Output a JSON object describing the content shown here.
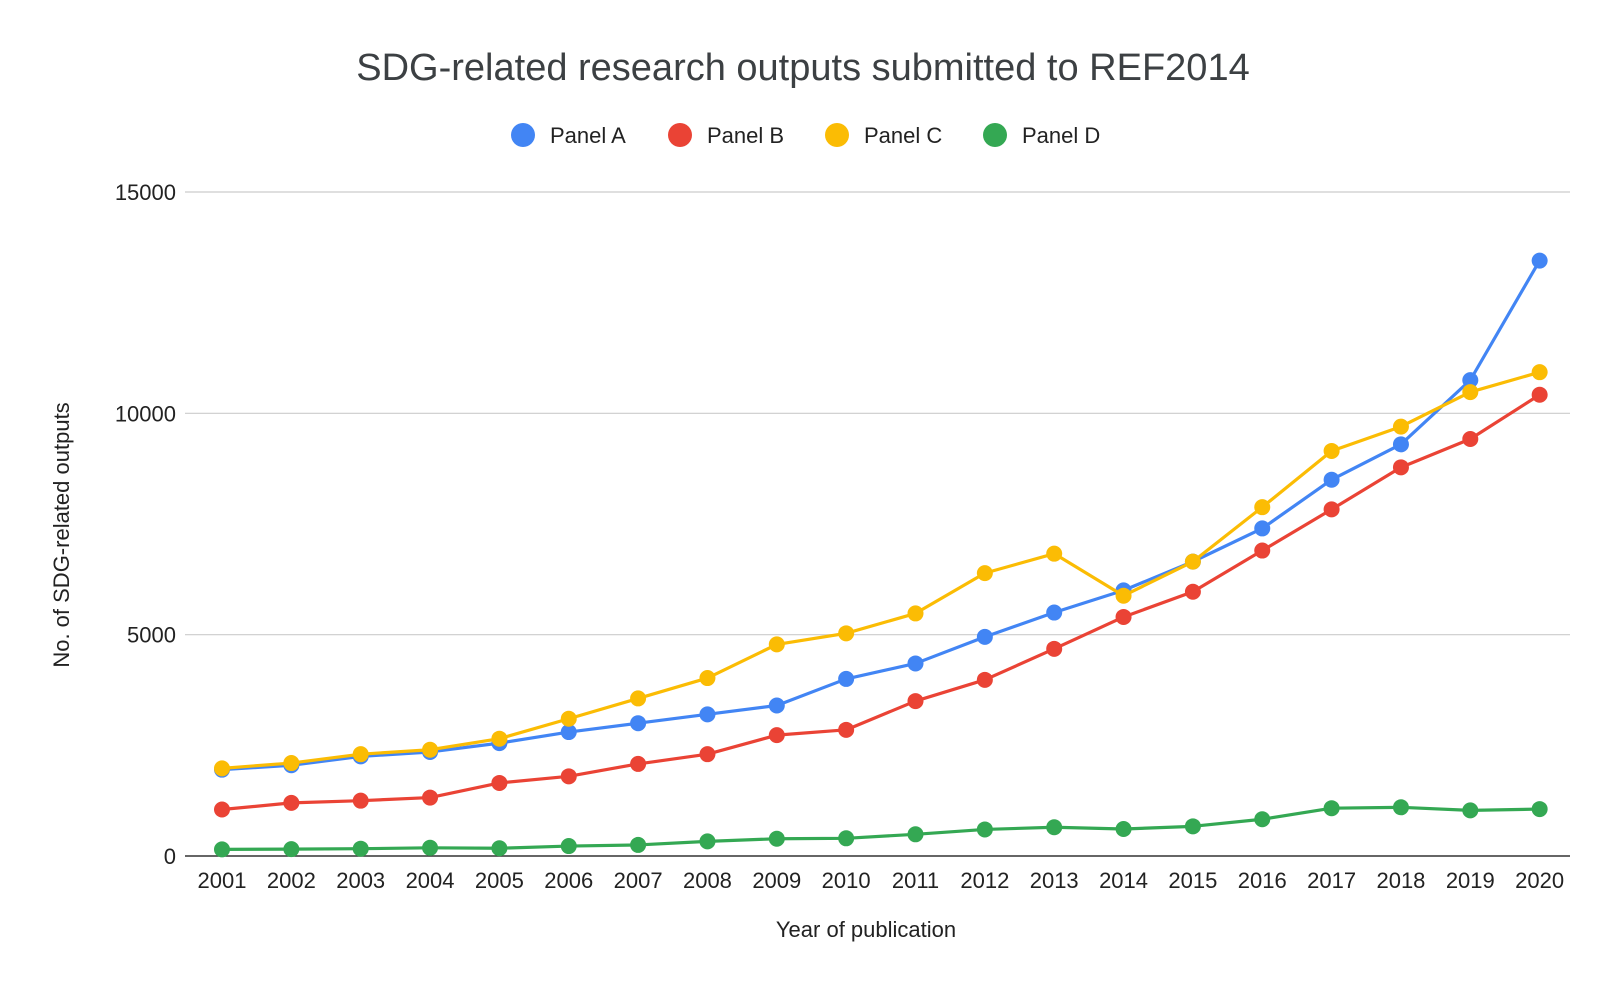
{
  "chart_data": {
    "type": "line",
    "title": "SDG-related research outputs submitted to REF2014",
    "xlabel": "Year of publication",
    "ylabel": "No. of SDG-related outputs",
    "ylim": [
      0,
      15000
    ],
    "yticks": [
      0,
      5000,
      10000,
      15000
    ],
    "grid": true,
    "legend_position": "top-center",
    "x": [
      "2001",
      "2002",
      "2003",
      "2004",
      "2005",
      "2006",
      "2007",
      "2008",
      "2009",
      "2010",
      "2011",
      "2012",
      "2013",
      "2014",
      "2015",
      "2016",
      "2017",
      "2018",
      "2019",
      "2020"
    ],
    "series": [
      {
        "name": "Panel A",
        "color": "#4285f4",
        "values": [
          1950,
          2050,
          2250,
          2350,
          2550,
          2800,
          3000,
          3200,
          3400,
          4000,
          4350,
          4950,
          5500,
          6000,
          6650,
          7400,
          8500,
          9300,
          10750,
          13450
        ]
      },
      {
        "name": "Panel B",
        "color": "#ea4335",
        "values": [
          1050,
          1200,
          1250,
          1320,
          1650,
          1800,
          2080,
          2300,
          2730,
          2850,
          3500,
          3980,
          4680,
          5400,
          5970,
          6900,
          7830,
          8780,
          9420,
          10420
        ]
      },
      {
        "name": "Panel C",
        "color": "#fbbc04",
        "values": [
          1980,
          2100,
          2300,
          2400,
          2650,
          3100,
          3560,
          4020,
          4780,
          5030,
          5480,
          6390,
          6830,
          5880,
          6650,
          7880,
          9150,
          9700,
          10480,
          10930
        ]
      },
      {
        "name": "Panel D",
        "color": "#34a853",
        "values": [
          150,
          155,
          165,
          185,
          175,
          225,
          250,
          330,
          390,
          400,
          490,
          600,
          650,
          610,
          670,
          830,
          1080,
          1100,
          1030,
          1060
        ]
      }
    ]
  }
}
